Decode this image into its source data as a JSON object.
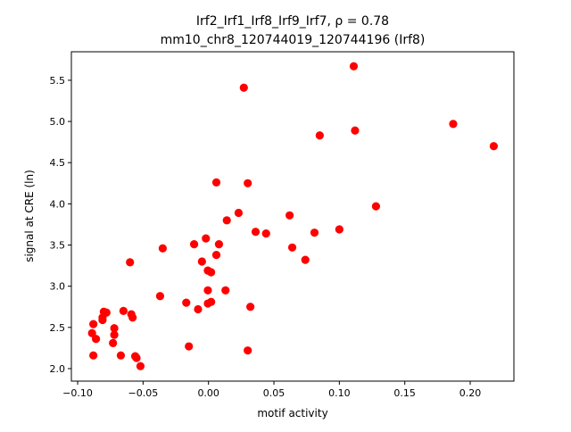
{
  "chart_data": {
    "type": "scatter",
    "title_line1": "Irf2_Irf1_Irf8_Irf9_Irf7, ρ = 0.78",
    "title_line2": "mm10_chr8_120744019_120744196 (Irf8)",
    "xlabel": "motif activity",
    "ylabel": "signal at CRE (ln)",
    "xlim": [
      -0.1048,
      0.2334
    ],
    "ylim": [
      1.848,
      5.846
    ],
    "xticks": [
      -0.1,
      -0.05,
      0.0,
      0.05,
      0.1,
      0.15,
      0.2
    ],
    "xtick_labels": [
      "−0.10",
      "−0.05",
      "0.00",
      "0.05",
      "0.10",
      "0.15",
      "0.20"
    ],
    "yticks": [
      2.0,
      2.5,
      3.0,
      3.5,
      4.0,
      4.5,
      5.0,
      5.5
    ],
    "ytick_labels": [
      "2.0",
      "2.5",
      "3.0",
      "3.5",
      "4.0",
      "4.5",
      "5.0",
      "5.5"
    ],
    "grid": false,
    "marker_color": "#ff0000",
    "points": [
      [
        0.111,
        5.67
      ],
      [
        0.027,
        5.41
      ],
      [
        0.187,
        4.97
      ],
      [
        0.085,
        4.83
      ],
      [
        0.112,
        4.89
      ],
      [
        0.218,
        4.7
      ],
      [
        0.006,
        4.26
      ],
      [
        0.03,
        4.25
      ],
      [
        0.128,
        3.97
      ],
      [
        0.023,
        3.89
      ],
      [
        0.062,
        3.86
      ],
      [
        0.014,
        3.8
      ],
      [
        0.036,
        3.66
      ],
      [
        0.044,
        3.64
      ],
      [
        0.081,
        3.65
      ],
      [
        0.1,
        3.69
      ],
      [
        -0.002,
        3.58
      ],
      [
        -0.011,
        3.51
      ],
      [
        0.008,
        3.51
      ],
      [
        0.064,
        3.47
      ],
      [
        -0.035,
        3.46
      ],
      [
        0.074,
        3.32
      ],
      [
        0.006,
        3.38
      ],
      [
        -0.06,
        3.29
      ],
      [
        -0.005,
        3.3
      ],
      [
        -0.0005,
        3.19
      ],
      [
        0.002,
        3.17
      ],
      [
        -0.0005,
        2.95
      ],
      [
        0.013,
        2.95
      ],
      [
        -0.037,
        2.88
      ],
      [
        -0.017,
        2.8
      ],
      [
        -0.0005,
        2.79
      ],
      [
        0.002,
        2.81
      ],
      [
        -0.008,
        2.72
      ],
      [
        0.032,
        2.75
      ],
      [
        -0.065,
        2.7
      ],
      [
        -0.08,
        2.69
      ],
      [
        -0.078,
        2.68
      ],
      [
        -0.059,
        2.66
      ],
      [
        -0.058,
        2.62
      ],
      [
        -0.081,
        2.62
      ],
      [
        -0.081,
        2.59
      ],
      [
        -0.088,
        2.54
      ],
      [
        -0.072,
        2.49
      ],
      [
        -0.072,
        2.41
      ],
      [
        -0.089,
        2.43
      ],
      [
        -0.086,
        2.36
      ],
      [
        -0.073,
        2.31
      ],
      [
        -0.015,
        2.27
      ],
      [
        0.03,
        2.22
      ],
      [
        -0.088,
        2.16
      ],
      [
        -0.067,
        2.16
      ],
      [
        -0.056,
        2.15
      ],
      [
        -0.055,
        2.13
      ],
      [
        -0.052,
        2.03
      ]
    ]
  }
}
